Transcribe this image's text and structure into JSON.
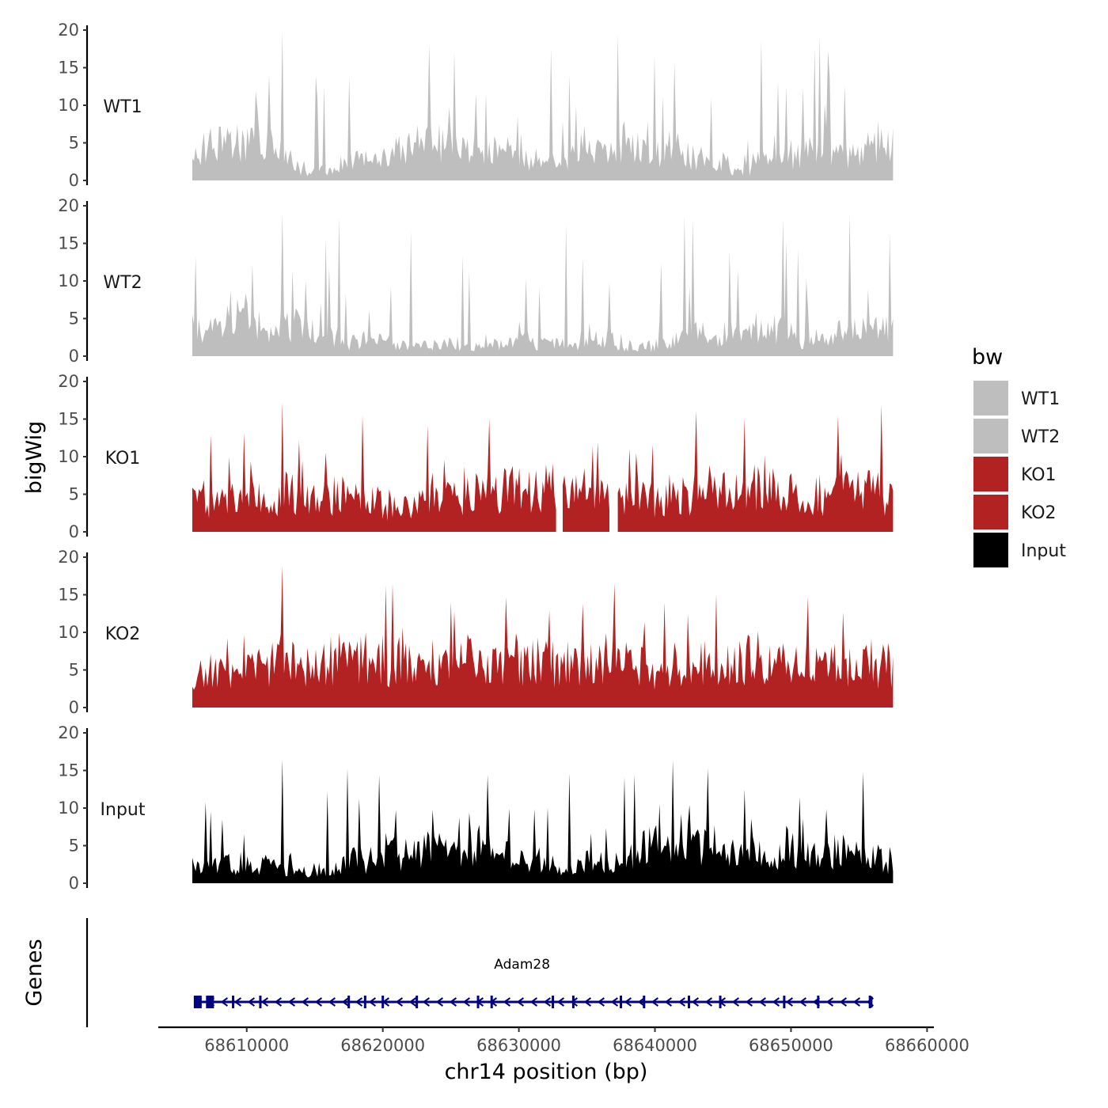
{
  "chart_data": {
    "type": "area",
    "ylabel": "bigWig",
    "xlabel": "chr14 position (bp)",
    "genes_label": "Genes",
    "ylim": [
      0,
      20
    ],
    "yticks": [
      0,
      5,
      10,
      15,
      20
    ],
    "x_range": [
      68603500,
      68660500
    ],
    "x_data_range": [
      68606000,
      68657500
    ],
    "xticks": [
      68610000,
      68620000,
      68630000,
      68640000,
      68650000,
      68660000
    ],
    "xtick_labels": [
      "68610000",
      "68620000",
      "68630000",
      "68640000",
      "68650000",
      "68660000"
    ],
    "legend": {
      "title": "bw",
      "entries": [
        {
          "name": "WT1",
          "color": "#bebebe"
        },
        {
          "name": "WT2",
          "color": "#bebebe"
        },
        {
          "name": "KO1",
          "color": "#b22222"
        },
        {
          "name": "KO2",
          "color": "#b22222"
        },
        {
          "name": "Input",
          "color": "#000000"
        }
      ]
    },
    "series": [
      {
        "name": "WT1",
        "color": "#bebebe",
        "peak": 19.8,
        "mean": 4.2,
        "cap": 19.8,
        "seed": 11,
        "gaps": []
      },
      {
        "name": "WT2",
        "color": "#bebebe",
        "peak": 19.0,
        "mean": 4.5,
        "cap": 19.0,
        "seed": 23,
        "gaps": []
      },
      {
        "name": "KO1",
        "color": "#b22222",
        "peak": 17.2,
        "mean": 4.6,
        "cap": 17.2,
        "seed": 37,
        "gaps": [
          [
            68632800,
            68633200
          ],
          [
            68636700,
            68637200
          ]
        ]
      },
      {
        "name": "KO2",
        "color": "#b22222",
        "peak": 18.8,
        "mean": 5.0,
        "cap": 18.8,
        "seed": 41,
        "gaps": []
      },
      {
        "name": "Input",
        "color": "#000000",
        "peak": 16.5,
        "mean": 4.0,
        "cap": 16.5,
        "seed": 53,
        "gaps": []
      }
    ],
    "genes": [
      {
        "name": "Adam28",
        "start": 68606200,
        "end": 68655900,
        "strand": "-",
        "color": "#000080",
        "exons": [
          68606400,
          68607300,
          68609000,
          68611000,
          68617500,
          68618700,
          68620000,
          68622500,
          68627000,
          68628000,
          68632500,
          68634000,
          68637500,
          68639200,
          68642500,
          68644800,
          68649500,
          68652000,
          68655800
        ]
      }
    ]
  }
}
